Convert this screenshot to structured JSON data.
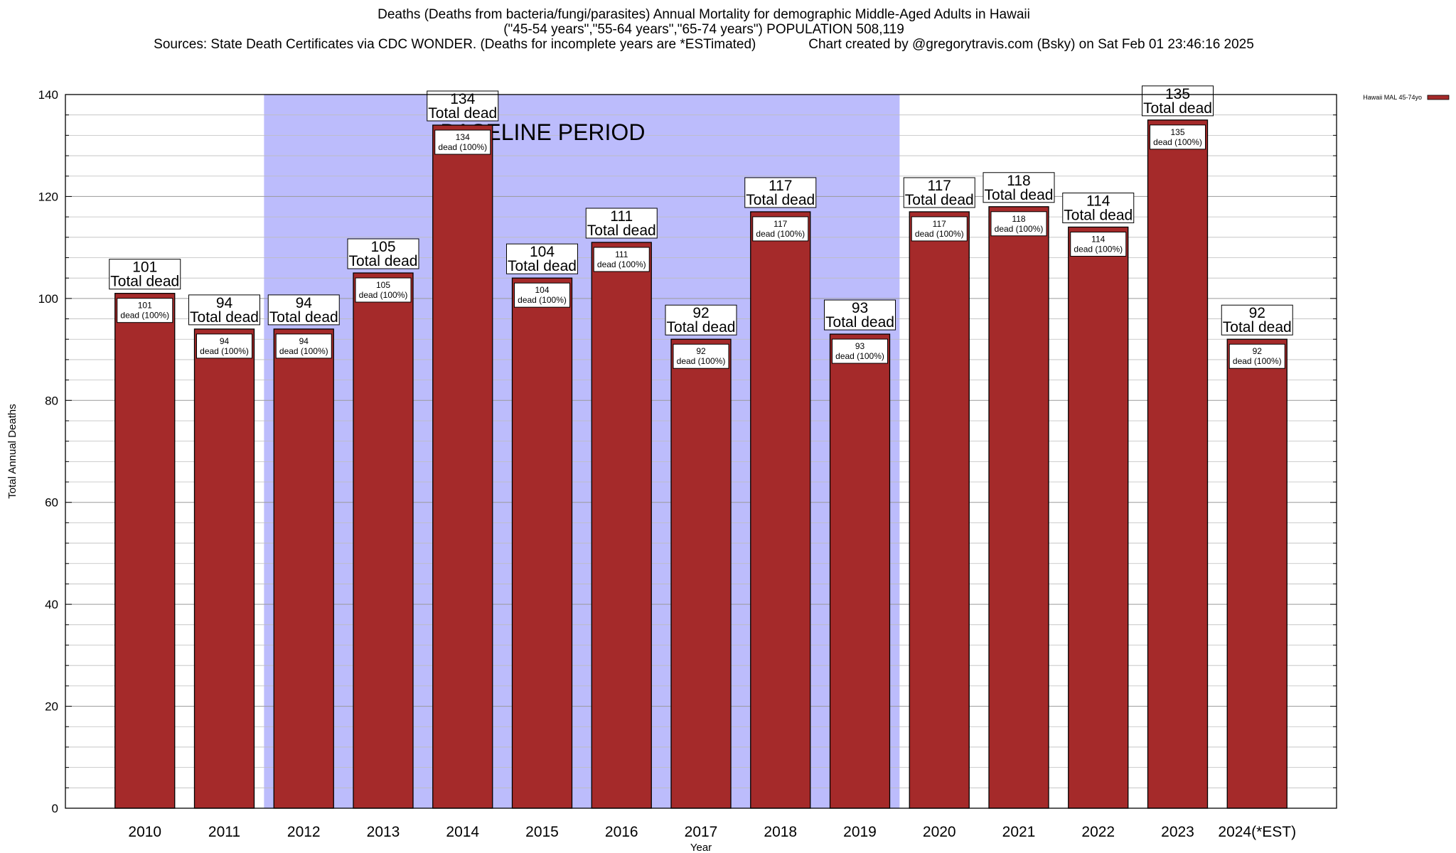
{
  "chart_data": {
    "type": "bar",
    "title_lines": [
      "Deaths (Deaths from bacteria/fungi/parasites) Annual Mortality for demographic Middle-Aged Adults in Hawaii",
      "(\"45-54 years\",\"55-64 years\",\"65-74 years\") POPULATION 508,119",
      "Sources: State Death Certificates via CDC WONDER. (Deaths for incomplete years are *ESTimated)              Chart created by @gregorytravis.com (Bsky) on Sat Feb 01 23:46:16 2025"
    ],
    "xlabel": "Year",
    "ylabel": "Total Annual Deaths",
    "ylim": [
      0,
      140
    ],
    "yticks": [
      0,
      20,
      40,
      60,
      80,
      100,
      120,
      140
    ],
    "grid": true,
    "legend_position": "top-right",
    "series": [
      {
        "name": "Hawaii MAL 45-74yo",
        "color": "#a52a2a",
        "values": [
          101,
          94,
          94,
          105,
          134,
          104,
          111,
          92,
          117,
          93,
          117,
          118,
          114,
          135,
          92
        ]
      }
    ],
    "categories": [
      "2010",
      "2011",
      "2012",
      "2013",
      "2014",
      "2015",
      "2016",
      "2017",
      "2018",
      "2019",
      "2020",
      "2021",
      "2022",
      "2023",
      "2024(*EST)"
    ],
    "bar_total_label": "Total dead",
    "bar_inner_label": "dead (100%)",
    "baseline_band": {
      "label": "BASELINE PERIOD",
      "from_category": "2012",
      "to_category": "2019",
      "color": "#bcbcfc"
    }
  }
}
